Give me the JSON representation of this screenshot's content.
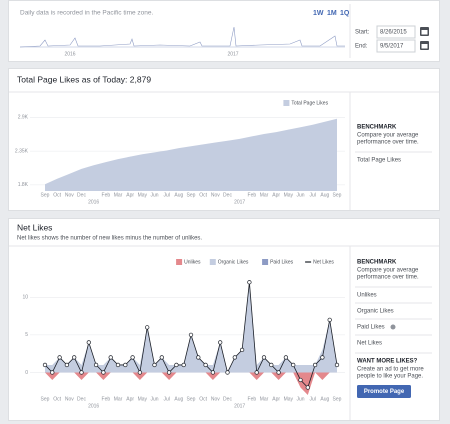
{
  "header": {
    "note": "Daily data is recorded in the Pacific time zone.",
    "ranges": [
      "1W",
      "1M",
      "1Q"
    ],
    "start_label": "Start:",
    "start": "8/26/2015",
    "end_label": "End:",
    "end": "9/5/2017",
    "years": [
      "2016",
      "2017"
    ]
  },
  "chart_data": [
    {
      "type": "area",
      "title": "Total Page Likes as of Today: 2,879",
      "categories": [
        "Sep",
        "Oct",
        "Nov",
        "Dec",
        null,
        "Feb",
        "Mar",
        "Apr",
        "May",
        "Jun",
        "Jul",
        "Aug",
        "Sep",
        "Oct",
        "Nov",
        "Dec",
        null,
        "Feb",
        "Mar",
        "Apr",
        "May",
        "Jun",
        "Jul",
        "Aug",
        "Sep"
      ],
      "years": [
        "2016",
        "2017"
      ],
      "series": [
        {
          "name": "Total Page Likes",
          "color": "#c4cde0",
          "values": [
            1810,
            1900,
            1980,
            2060,
            2120,
            2170,
            2220,
            2260,
            2300,
            2330,
            2360,
            2400,
            2430,
            2460,
            2490,
            2520,
            2550,
            2590,
            2630,
            2660,
            2700,
            2740,
            2780,
            2830,
            2879
          ]
        }
      ],
      "ylim": [
        1700,
        3200
      ],
      "yticks": [
        {
          "value": 1800,
          "label": "1.8K"
        },
        {
          "value": 2350,
          "label": "2.35K"
        },
        {
          "value": 2900,
          "label": "2.9K"
        }
      ],
      "grid": true,
      "legend": "top-right"
    },
    {
      "type": "line",
      "title": "Net Likes",
      "subtitle": "Net likes shows the number of new likes minus the number of unlikes.",
      "xtick_labels": [
        "Sep",
        "Oct",
        "Nov",
        "Dec",
        null,
        "Feb",
        "Mar",
        "Apr",
        "May",
        "Jun",
        "Jul",
        "Aug",
        "Sep",
        "Oct",
        "Nov",
        "Dec",
        null,
        "Feb",
        "Mar",
        "Apr",
        "May",
        "Jun",
        "Jul",
        "Aug",
        "Sep"
      ],
      "years": [
        "2016",
        "2017"
      ],
      "series": [
        {
          "name": "Unlikes",
          "color": "#e4888c",
          "values": [
            0,
            -1,
            0,
            0,
            0,
            -1,
            0,
            0,
            -1,
            0,
            0,
            0,
            0,
            -1,
            0,
            0,
            0,
            -1,
            0,
            0,
            0,
            0,
            0,
            -1,
            0,
            0,
            0,
            0,
            0,
            -1,
            0,
            0,
            -1,
            0,
            0,
            -2,
            -3,
            0,
            -1,
            0,
            0
          ]
        },
        {
          "name": "Organic Likes",
          "color": "#c4cde0",
          "values": [
            1,
            1,
            2,
            1,
            2,
            1,
            4,
            1,
            1,
            2,
            1,
            1,
            2,
            1,
            6,
            1,
            2,
            1,
            1,
            1,
            5,
            2,
            1,
            1,
            4,
            0,
            2,
            3,
            12,
            1,
            2,
            1,
            1,
            2,
            1,
            1,
            1,
            1,
            3,
            7,
            1
          ]
        },
        {
          "name": "Paid Likes",
          "color": "#8d9bc4"
        },
        {
          "name": "Net Likes",
          "color": "#1d2129",
          "values": [
            1,
            0,
            2,
            1,
            2,
            0,
            4,
            1,
            0,
            2,
            1,
            1,
            2,
            0,
            6,
            1,
            2,
            0,
            1,
            1,
            5,
            2,
            1,
            0,
            4,
            0,
            2,
            3,
            12,
            0,
            2,
            1,
            0,
            2,
            1,
            -1,
            -2,
            1,
            2,
            7,
            1
          ]
        }
      ],
      "ylim": [
        -3,
        13.5
      ],
      "yticks": [
        0,
        5,
        10
      ],
      "legend": "top-right"
    }
  ],
  "sidebar": [
    {
      "title": "BENCHMARK",
      "lines": [
        "Compare your average",
        "performance over time."
      ],
      "items": [
        "Total Page Likes"
      ]
    },
    {
      "title": "BENCHMARK",
      "lines": [
        "Compare your average",
        "performance over time."
      ],
      "items": [
        "Unlikes",
        "Organic Likes",
        "Paid Likes",
        "Net Likes"
      ],
      "promo": {
        "title": "WANT MORE LIKES?",
        "lines": [
          "Create an ad to get more",
          "people to like your Page."
        ],
        "button": "Promote Page"
      }
    }
  ]
}
